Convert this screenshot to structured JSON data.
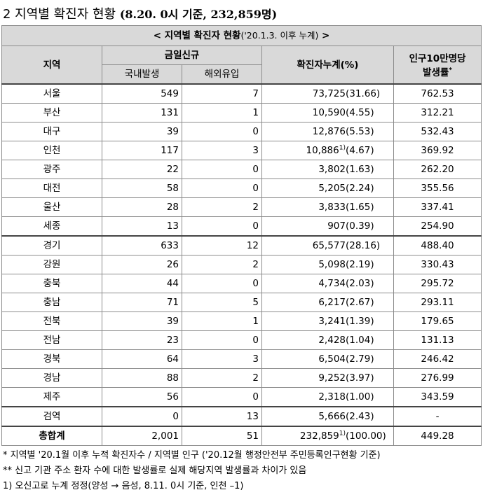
{
  "title": {
    "main": "2  지역별 확진자 현황",
    "sub": "(8.20. 0시 기준, 232,859명)"
  },
  "table": {
    "caption": "< 지역별 확진자 현황",
    "caption_sub": "('20.1.3. 이후 누계)",
    "caption_end": " >",
    "headers": {
      "region": "지역",
      "today_new": "금일신규",
      "domestic": "국내발생",
      "overseas": "해외유입",
      "cumulative": "확진자누계(%)",
      "rate_line1": "인구10만명당",
      "rate_line2": "발생률",
      "rate_mark": "*"
    },
    "rows": [
      {
        "region": "서울",
        "domestic": "549",
        "overseas": "7",
        "cumulative": "73,725",
        "pct": "(31.66)",
        "rate": "762.53"
      },
      {
        "region": "부산",
        "domestic": "131",
        "overseas": "1",
        "cumulative": "10,590",
        "pct": "(4.55)",
        "rate": "312.21"
      },
      {
        "region": "대구",
        "domestic": "39",
        "overseas": "0",
        "cumulative": "12,876",
        "pct": "(5.53)",
        "rate": "532.43"
      },
      {
        "region": "인천",
        "domestic": "117",
        "overseas": "3",
        "cumulative": "10,886",
        "footnote": "1)",
        "pct": "(4.67)",
        "rate": "369.92"
      },
      {
        "region": "광주",
        "domestic": "22",
        "overseas": "0",
        "cumulative": "3,802",
        "pct": "(1.63)",
        "rate": "262.20"
      },
      {
        "region": "대전",
        "domestic": "58",
        "overseas": "0",
        "cumulative": "5,205",
        "pct": "(2.24)",
        "rate": "355.56"
      },
      {
        "region": "울산",
        "domestic": "28",
        "overseas": "2",
        "cumulative": "3,833",
        "pct": "(1.65)",
        "rate": "337.41"
      },
      {
        "region": "세종",
        "domestic": "13",
        "overseas": "0",
        "cumulative": "907",
        "pct": "(0.39)",
        "rate": "254.90"
      },
      {
        "region": "경기",
        "domestic": "633",
        "overseas": "12",
        "cumulative": "65,577",
        "pct": "(28.16)",
        "rate": "488.40"
      },
      {
        "region": "강원",
        "domestic": "26",
        "overseas": "2",
        "cumulative": "5,098",
        "pct": "(2.19)",
        "rate": "330.43"
      },
      {
        "region": "충북",
        "domestic": "44",
        "overseas": "0",
        "cumulative": "4,734",
        "pct": "(2.03)",
        "rate": "295.72"
      },
      {
        "region": "충남",
        "domestic": "71",
        "overseas": "5",
        "cumulative": "6,217",
        "pct": "(2.67)",
        "rate": "293.11"
      },
      {
        "region": "전북",
        "domestic": "39",
        "overseas": "1",
        "cumulative": "3,241",
        "pct": "(1.39)",
        "rate": "179.65"
      },
      {
        "region": "전남",
        "domestic": "23",
        "overseas": "0",
        "cumulative": "2,428",
        "pct": "(1.04)",
        "rate": "131.13"
      },
      {
        "region": "경북",
        "domestic": "64",
        "overseas": "3",
        "cumulative": "6,504",
        "pct": "(2.79)",
        "rate": "246.42"
      },
      {
        "region": "경남",
        "domestic": "88",
        "overseas": "2",
        "cumulative": "9,252",
        "pct": "(3.97)",
        "rate": "276.99"
      },
      {
        "region": "제주",
        "domestic": "56",
        "overseas": "0",
        "cumulative": "2,318",
        "pct": "(1.00)",
        "rate": "343.59"
      },
      {
        "region": "검역",
        "domestic": "0",
        "overseas": "13",
        "cumulative": "5,666",
        "pct": "(2.43)",
        "rate": "-"
      }
    ],
    "total": {
      "region": "총합계",
      "domestic": "2,001",
      "overseas": "51",
      "cumulative": "232,859",
      "footnote": "1)",
      "pct": "(100.00)",
      "rate": "449.28"
    }
  },
  "notes": [
    "* 지역별 '20.1월 이후 누적 확진자수 / 지역별 인구 ('20.12월 행정안전부 주민등록인구현황 기준)",
    "** 신고 기관 주소 환자 수에 대한 발생률로 실제 해당지역 발생률과 차이가 있음",
    "1) 오신고로 누계 정정(양성 → 음성, 8.11. 0시 기준, 인천 –1)"
  ]
}
